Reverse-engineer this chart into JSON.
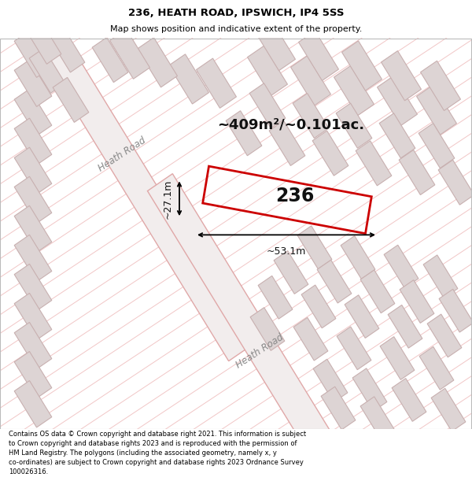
{
  "title": "236, HEATH ROAD, IPSWICH, IP4 5SS",
  "subtitle": "Map shows position and indicative extent of the property.",
  "footer": "Contains OS data © Crown copyright and database right 2021. This information is subject to Crown copyright and database rights 2023 and is reproduced with the permission of HM Land Registry. The polygons (including the associated geometry, namely x, y co-ordinates) are subject to Crown copyright and database rights 2023 Ordnance Survey 100026316.",
  "area_label": "~409m²/~0.101ac.",
  "width_label": "~53.1m",
  "height_label": "~27.1m",
  "number_label": "236",
  "map_bg": "#f7f3f3",
  "diag_line_color": "#f0c0c0",
  "road_fill": "#f2eded",
  "road_edge": "#e0a8a8",
  "building_fill": "#ddd4d4",
  "building_edge": "#c8b0b0",
  "highlight_edge": "#cc0000",
  "highlight_fill": "none",
  "road_label_color": "#888888",
  "dim_color": "#111111",
  "area_color": "#111111",
  "num_color": "#111111",
  "title_fontsize": 9.5,
  "subtitle_fontsize": 8,
  "footer_fontsize": 6.0,
  "area_fontsize": 13,
  "num_fontsize": 17,
  "dim_fontsize": 9,
  "road_fontsize": 8.5
}
